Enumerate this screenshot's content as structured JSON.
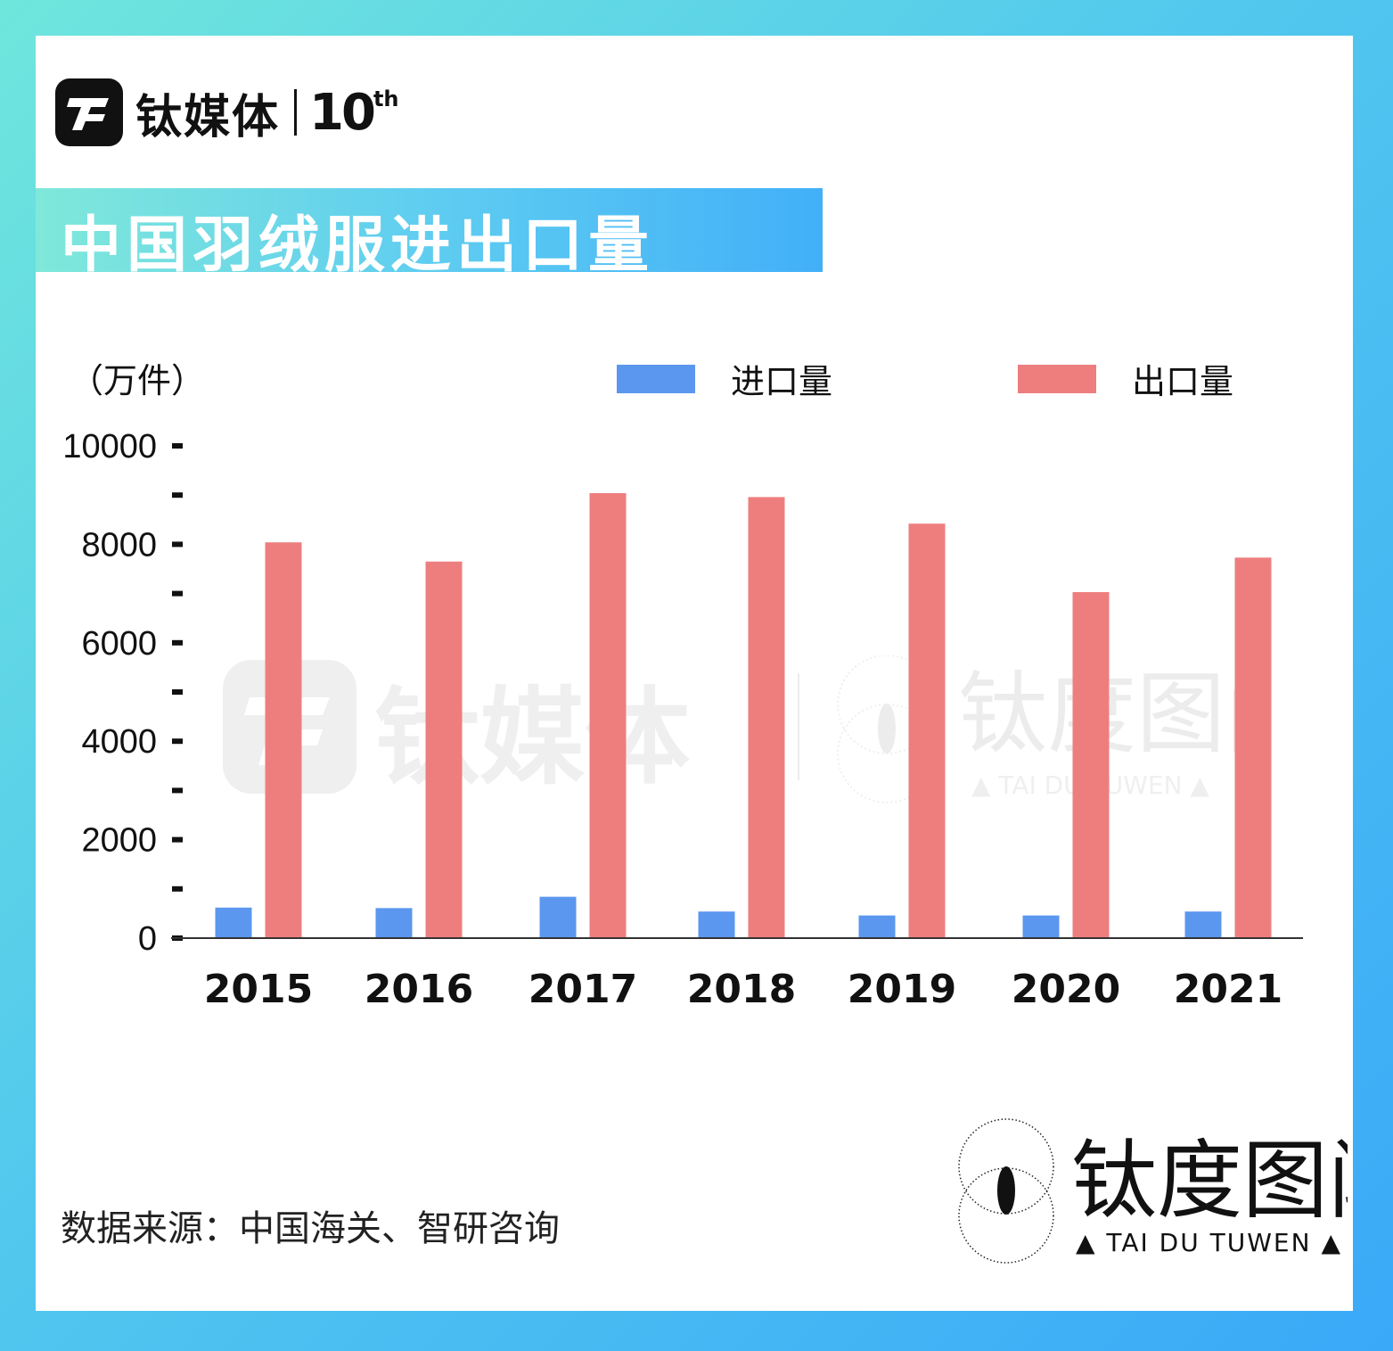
{
  "brand": {
    "name": "钛媒体",
    "anniversary": "10",
    "anniversary_suffix": "th"
  },
  "title": "中国羽绒服进出口量",
  "source": "数据来源：中国海关、智研咨询",
  "watermark": {
    "center_name": "钛媒体",
    "seal_name": "钛度图闻",
    "seal_tagline": "▲ TAI DU TUWEN ▲"
  },
  "colors": {
    "import": "#5b97ef",
    "export": "#ee7e7e",
    "frame_start": "#6fe6dc",
    "frame_end": "#3aa9f8"
  },
  "chart_data": {
    "type": "bar",
    "unit_label": "（万件）",
    "categories": [
      "2015",
      "2016",
      "2017",
      "2018",
      "2019",
      "2020",
      "2021"
    ],
    "series": [
      {
        "name": "进口量",
        "color": "#5b97ef",
        "values": [
          620,
          610,
          840,
          540,
          460,
          460,
          540
        ]
      },
      {
        "name": "出口量",
        "color": "#ee7e7e",
        "values": [
          8040,
          7650,
          9040,
          8960,
          8420,
          7030,
          7730
        ]
      }
    ],
    "y_ticks": [
      "0",
      "2000",
      "4000",
      "6000",
      "8000",
      "10000"
    ],
    "ylim": [
      0,
      10000
    ],
    "legend_position": "top-right",
    "grid": false
  }
}
